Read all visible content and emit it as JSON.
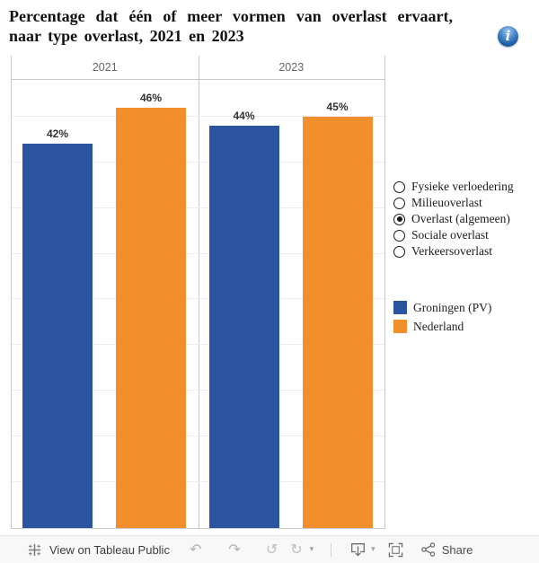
{
  "title": "Percentage dat één of meer vormen van overlast ervaart, naar type overlast, 2021 en 2023",
  "info_button": {
    "glyph": "i"
  },
  "chart_data": {
    "type": "bar",
    "title": "Percentage dat één of meer vormen van overlast ervaart, naar type overlast, 2021 en 2023",
    "categories": [
      "2021",
      "2023"
    ],
    "series": [
      {
        "name": "Groningen (PV)",
        "color": "#2a54a0",
        "values": [
          42,
          44
        ]
      },
      {
        "name": "Nederland",
        "color": "#f28e2b",
        "values": [
          46,
          45
        ]
      }
    ],
    "value_labels": {
      "2021": [
        "42%",
        "46%"
      ],
      "2023": [
        "44%",
        "45%"
      ]
    },
    "ylim": [
      0,
      49
    ],
    "gridline_values": [
      5,
      10,
      15,
      20,
      25,
      30,
      35,
      40,
      45
    ],
    "grid": true,
    "xlabel": "",
    "ylabel": "",
    "legend_position": "right"
  },
  "filter_panel": {
    "options": [
      {
        "label": "Fysieke verloedering",
        "selected": false
      },
      {
        "label": "Milieuoverlast",
        "selected": false
      },
      {
        "label": "Overlast (algemeen)",
        "selected": true
      },
      {
        "label": "Sociale overlast",
        "selected": false
      },
      {
        "label": "Verkeersoverlast",
        "selected": false
      }
    ]
  },
  "legend": {
    "items": [
      {
        "label": "Groningen (PV)",
        "color": "#2a54a0"
      },
      {
        "label": "Nederland",
        "color": "#f28e2b"
      }
    ]
  },
  "toolbar": {
    "view_on_label": "View on Tableau Public",
    "share_label": "Share"
  },
  "colors": {
    "groningen_blue": "#2a54a0",
    "nederland_orange": "#f28e2b",
    "axis_line": "#c9c9c9",
    "gridline": "#ededed",
    "pane_header_text": "#666666",
    "value_label": "#333333",
    "toolbar_background": "#f8f8f8"
  }
}
